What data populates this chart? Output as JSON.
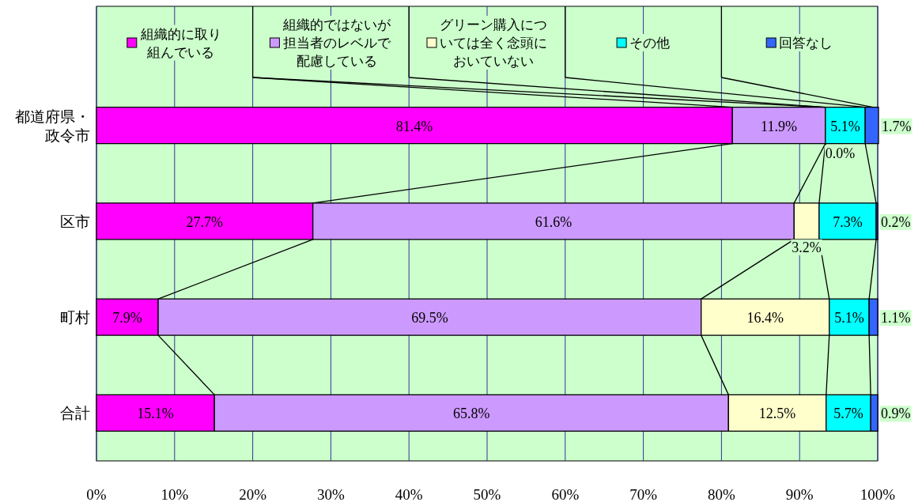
{
  "chart_data": {
    "type": "bar",
    "orientation": "horizontal",
    "stacked": true,
    "categories": [
      "都道府県・政令市",
      "区市",
      "町村",
      "合計"
    ],
    "series": [
      {
        "name": "組織的に取り組んでいる",
        "color": "#ff00ff",
        "values": [
          81.4,
          27.7,
          7.9,
          15.1
        ],
        "value_labels": [
          "81.4%",
          "27.7%",
          "7.9%",
          "15.1%"
        ]
      },
      {
        "name": "組織的ではないが担当者のレベルで配慮している",
        "color": "#cc99ff",
        "values": [
          11.9,
          61.6,
          69.5,
          65.8
        ],
        "value_labels": [
          "11.9%",
          "61.6%",
          "69.5%",
          "65.8%"
        ]
      },
      {
        "name": "グリーン購入については全く念頭においていない",
        "color": "#ffffcc",
        "values": [
          0.0,
          3.2,
          16.4,
          12.5
        ],
        "value_labels": [
          "0.0%",
          "3.2%",
          "16.4%",
          "12.5%"
        ]
      },
      {
        "name": "その他",
        "color": "#00ffff",
        "values": [
          5.1,
          7.3,
          5.1,
          5.7
        ],
        "value_labels": [
          "5.1%",
          "7.3%",
          "5.1%",
          "5.7%"
        ]
      },
      {
        "name": "回答なし",
        "color": "#3366ff",
        "values": [
          1.7,
          0.2,
          1.1,
          0.9
        ],
        "value_labels": [
          "1.7%",
          "0.2%",
          "1.1%",
          "0.9%"
        ]
      }
    ],
    "xlim": [
      0,
      100
    ],
    "xticks": [
      {
        "value": 0,
        "label": "0%"
      },
      {
        "value": 10,
        "label": "10%"
      },
      {
        "value": 20,
        "label": "20%"
      },
      {
        "value": 30,
        "label": "30%"
      },
      {
        "value": 40,
        "label": "40%"
      },
      {
        "value": 50,
        "label": "50%"
      },
      {
        "value": 60,
        "label": "60%"
      },
      {
        "value": 70,
        "label": "70%"
      },
      {
        "value": 80,
        "label": "80%"
      },
      {
        "value": 90,
        "label": "90%"
      },
      {
        "value": 100,
        "label": "100%"
      }
    ],
    "grid": "x",
    "legend": "top"
  }
}
